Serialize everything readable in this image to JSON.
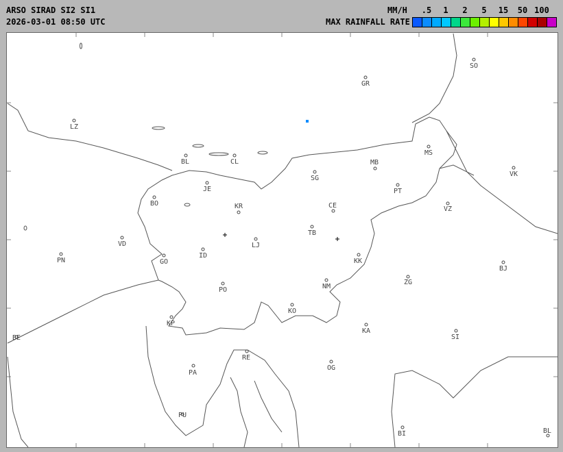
{
  "header": {
    "title": "ARSO SIRAD SI2 SI1",
    "timestamp": "2026-03-01 08:50 UTC"
  },
  "legend": {
    "unit": "MM/H",
    "label": "MAX RAINFALL RATE",
    "ticks": [
      ".5",
      "1",
      "2",
      "5",
      "15",
      "50",
      "100"
    ],
    "colors": [
      "#0a5aff",
      "#0a8cff",
      "#00aaff",
      "#00c8ff",
      "#00d68a",
      "#3ce83c",
      "#6cf000",
      "#b4f000",
      "#ffff00",
      "#ffc800",
      "#ff8c00",
      "#ff4600",
      "#d20000",
      "#aa0000",
      "#c800c8"
    ]
  },
  "map": {
    "line_color": "#555555",
    "cities": [
      {
        "code": "SO"
      },
      {
        "code": "GR"
      },
      {
        "code": "LZ"
      },
      {
        "code": "BL"
      },
      {
        "code": "CL"
      },
      {
        "code": "MS"
      },
      {
        "code": "MB"
      },
      {
        "code": "VK"
      },
      {
        "code": "SG"
      },
      {
        "code": "JE"
      },
      {
        "code": "PT"
      },
      {
        "code": "BO"
      },
      {
        "code": "VZ"
      },
      {
        "code": "KR"
      },
      {
        "code": "CE"
      },
      {
        "code": "TB"
      },
      {
        "code": "VD"
      },
      {
        "code": "LJ"
      },
      {
        "code": "PN"
      },
      {
        "code": "ID"
      },
      {
        "code": "GO"
      },
      {
        "code": "KK"
      },
      {
        "code": "BJ"
      },
      {
        "code": "ZG"
      },
      {
        "code": "NM"
      },
      {
        "code": "PO"
      },
      {
        "code": "KO"
      },
      {
        "code": "KP"
      },
      {
        "code": "KA"
      },
      {
        "code": "SI"
      },
      {
        "code": "BE"
      },
      {
        "code": "RE"
      },
      {
        "code": "PA"
      },
      {
        "code": "OG"
      },
      {
        "code": "PU"
      },
      {
        "code": "BI"
      },
      {
        "code": "BL"
      }
    ],
    "radar_sites": [
      "radar-1",
      "radar-2"
    ],
    "rain_echoes": [
      {
        "rate_class": 1
      }
    ]
  }
}
